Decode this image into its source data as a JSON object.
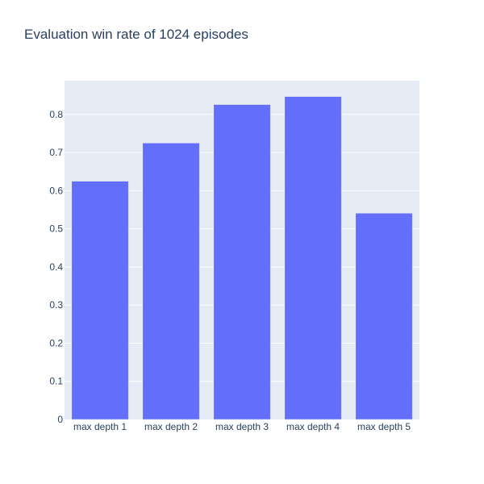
{
  "chart_data": {
    "type": "bar",
    "title": "Evaluation win rate of 1024 episodes",
    "xlabel": "",
    "ylabel": "",
    "categories": [
      "max depth 1",
      "max depth 2",
      "max depth 3",
      "max depth 4",
      "max depth 5"
    ],
    "values": [
      0.625,
      0.725,
      0.826,
      0.847,
      0.541
    ],
    "ylim": [
      0,
      0.8886
    ],
    "yticks": [
      0,
      0.1,
      0.2,
      0.3,
      0.4,
      0.5,
      0.6,
      0.7,
      0.8
    ],
    "ytick_labels": [
      "0",
      "0.1",
      "0.2",
      "0.3",
      "0.4",
      "0.5",
      "0.6",
      "0.7",
      "0.8"
    ],
    "grid": true,
    "legend": "none",
    "colors": {
      "bar": "#636efa",
      "plot_background": "#e5ecf6",
      "gridline": "#ffffff",
      "text": "#2a3f5f",
      "tick_text": "#2a3f5f"
    }
  }
}
